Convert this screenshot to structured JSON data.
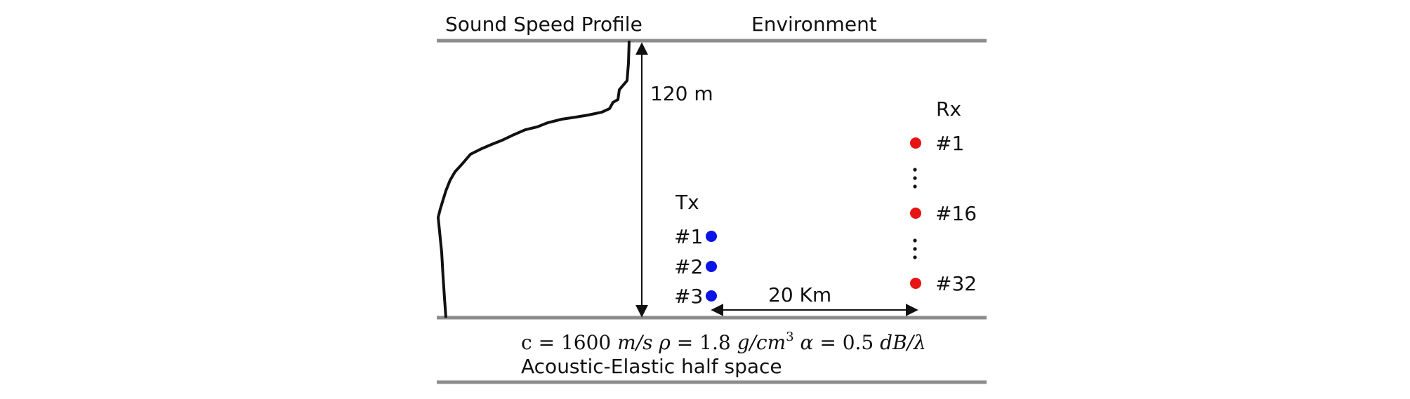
{
  "labels": {
    "ssp_title": "Sound Speed Profile",
    "env_title": "Environment",
    "depth": "120 m",
    "tx_title": "Tx",
    "rx_title": "Rx",
    "range": "20 Km",
    "halfspace": "Acoustic-Elastic half space"
  },
  "bottom_params": {
    "c_label": "c",
    "c_value": "1600",
    "c_unit": "m/s",
    "rho_label": "ρ",
    "rho_value": "1.8",
    "rho_unit": "g/cm",
    "rho_exp": "3",
    "alpha_label": "α",
    "alpha_value": "0.5",
    "alpha_unit": "dB/λ"
  },
  "transmitters": [
    "#1",
    "#2",
    "#3"
  ],
  "receivers": [
    "#1",
    "#16",
    "#32"
  ],
  "colors": {
    "tx": "#0a14e6",
    "rx": "#e61414",
    "boundary": "#8c8c8c",
    "line": "#111111"
  }
}
